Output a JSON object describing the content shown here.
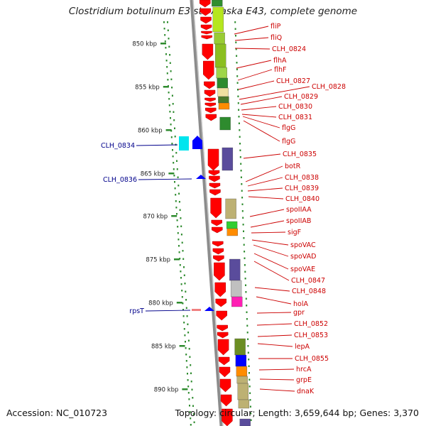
{
  "title": "Clostridium botulinum E3 str. Alaska E43, complete genome",
  "footer": {
    "accession": "Accession: NC_010723",
    "summary": "Topology: circular; Length: 3,659,644 bp; Genes: 3,370"
  },
  "colors": {
    "backbone": "#909090",
    "forward_gene": "#ff0000",
    "right_label": "#cc0000",
    "left_label": "#00008b",
    "kbp_dash": "#2e8b2e",
    "dots": "#2e8b2e"
  },
  "kbp_ticks": [
    "850 kbp",
    "855 kbp",
    "860 kbp",
    "865 kbp",
    "870 kbp",
    "875 kbp",
    "880 kbp",
    "885 kbp",
    "890 kbp"
  ],
  "right_labels": [
    "fliP",
    "fliQ",
    "CLH_0824",
    "flhA",
    "flhF",
    "CLH_0827",
    "CLH_0828",
    "CLH_0829",
    "CLH_0830",
    "CLH_0831",
    "flgG",
    "flgG",
    "CLH_0835",
    "botR",
    "CLH_0838",
    "CLH_0839",
    "CLH_0840",
    "spoIIAA",
    "spoIIAB",
    "sigF",
    "spoVAC",
    "spoVAD",
    "spoVAE",
    "CLH_0847",
    "CLH_0848",
    "holA",
    "gpr",
    "CLH_0852",
    "CLH_0853",
    "lepA",
    "CLH_0855",
    "hrcA",
    "grpE",
    "dnaK"
  ],
  "left_labels": [
    "CLH_0834",
    "CLH_0836",
    "rpsT"
  ]
}
